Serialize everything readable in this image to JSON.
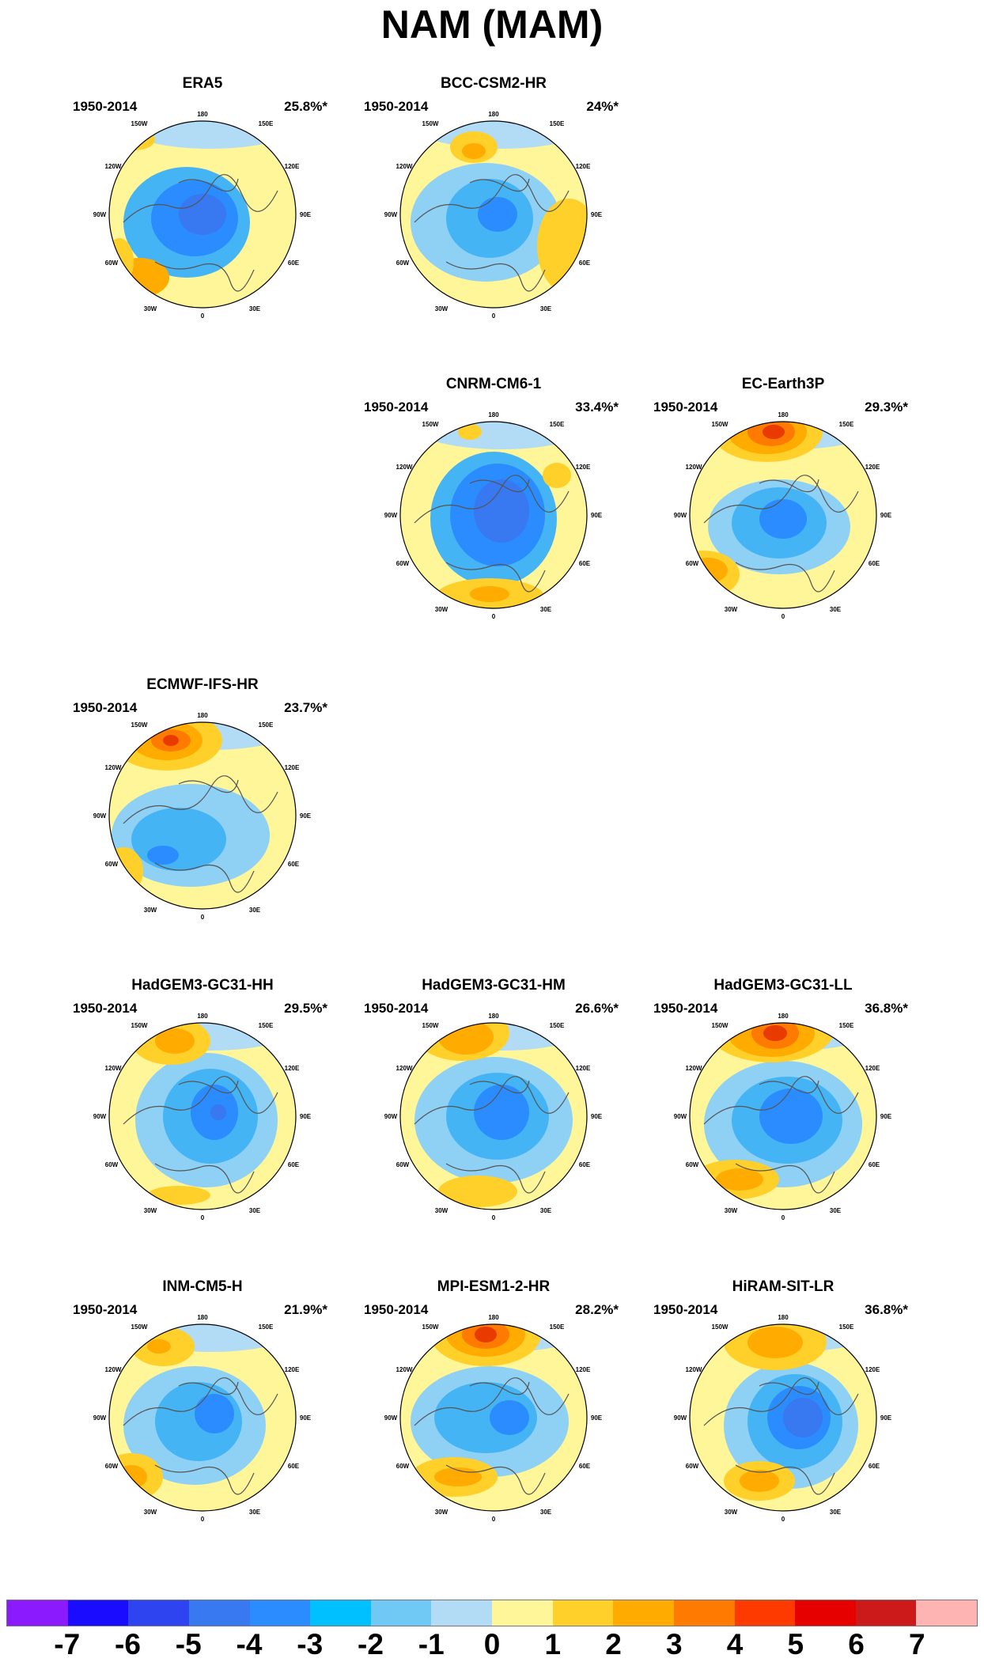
{
  "title": "NAM (MAM)",
  "map_labels": {
    "top": "180",
    "bottom": "0",
    "upper_left": "150W",
    "upper_right": "150E",
    "mid_upper_left": "120W",
    "mid_upper_right": "120E",
    "left": "90W",
    "right": "90E",
    "mid_lower_left": "60W",
    "mid_lower_right": "60E",
    "lower_left": "30W",
    "lower_right": "30E"
  },
  "panels": [
    {
      "name": "ERA5",
      "period": "1950-2014",
      "percent": "25.8%*"
    },
    {
      "name": "BCC-CSM2-HR",
      "period": "1950-2014",
      "percent": "24%*"
    },
    {
      "name": "CNRM-CM6-1",
      "period": "1950-2014",
      "percent": "33.4%*"
    },
    {
      "name": "EC-Earth3P",
      "period": "1950-2014",
      "percent": "29.3%*"
    },
    {
      "name": "ECMWF-IFS-HR",
      "period": "1950-2014",
      "percent": "23.7%*"
    },
    {
      "name": "HadGEM3-GC31-HH",
      "period": "1950-2014",
      "percent": "29.5%*"
    },
    {
      "name": "HadGEM3-GC31-HM",
      "period": "1950-2014",
      "percent": "26.6%*"
    },
    {
      "name": "HadGEM3-GC31-LL",
      "period": "1950-2014",
      "percent": "36.8%*"
    },
    {
      "name": "INM-CM5-H",
      "period": "1950-2014",
      "percent": "21.9%*"
    },
    {
      "name": "MPI-ESM1-2-HR",
      "period": "1950-2014",
      "percent": "28.2%*"
    },
    {
      "name": "HiRAM-SIT-LR",
      "period": "1950-2014",
      "percent": "36.8%*"
    }
  ],
  "colorbar": {
    "colors": [
      "#8c1aff",
      "#1a0dff",
      "#2e44f0",
      "#3878f0",
      "#2a8cff",
      "#00c0ff",
      "#70c8f5",
      "#b2dcf5",
      "#fff599",
      "#ffd02a",
      "#ffab00",
      "#ff7a00",
      "#ff3a00",
      "#e60000",
      "#cc1a1a",
      "#ffb4b4"
    ],
    "ticks": [
      "-7",
      "-6",
      "-5",
      "-4",
      "-3",
      "-2",
      "-1",
      "0",
      "1",
      "2",
      "3",
      "4",
      "5",
      "6",
      "7"
    ]
  }
}
